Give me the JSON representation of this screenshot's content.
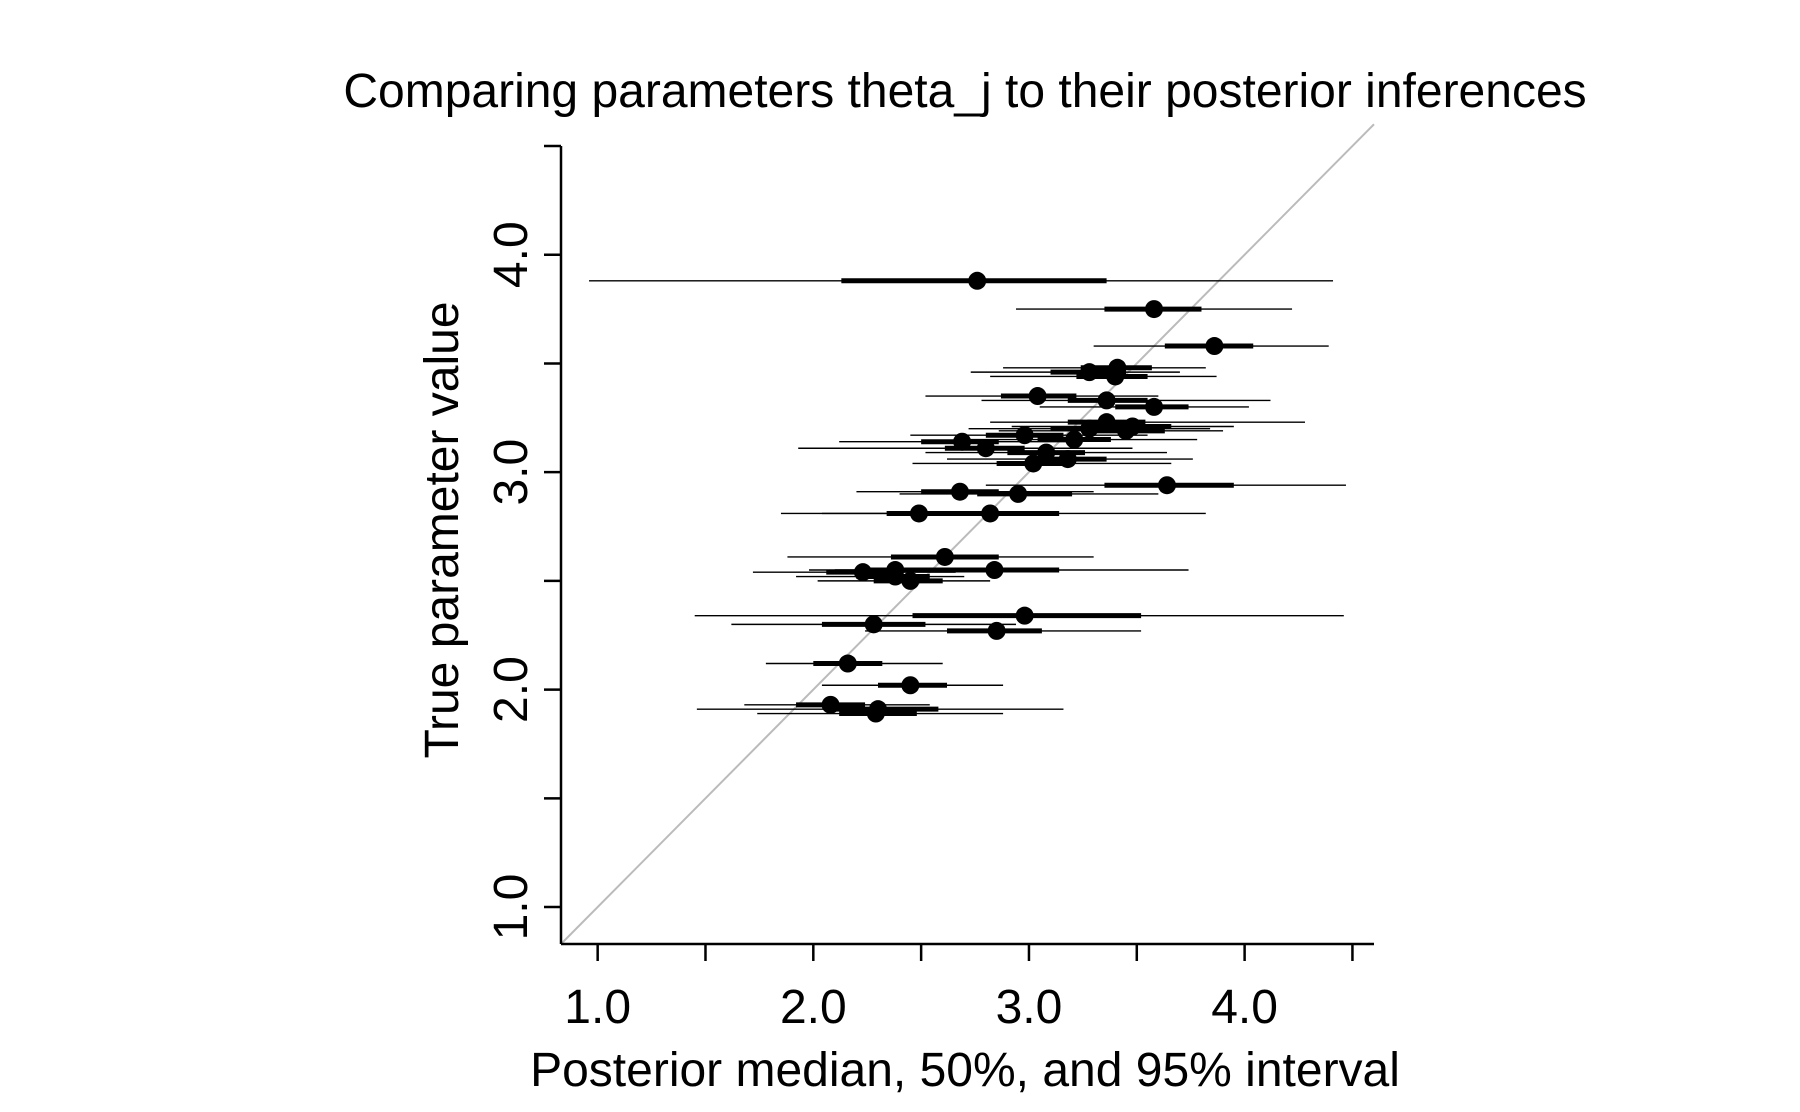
{
  "chart_data": {
    "type": "scatter",
    "title": "Comparing parameters theta_j to their posterior inferences",
    "xlabel": "Posterior median, 50%, and 95% interval",
    "ylabel": "True parameter value",
    "xlim": [
      0.83,
      4.6
    ],
    "ylim": [
      0.83,
      4.5
    ],
    "xticks": [
      1.0,
      1.5,
      2.0,
      2.5,
      3.0,
      3.5,
      4.0,
      4.5
    ],
    "yticks": [
      1.0,
      1.5,
      2.0,
      2.5,
      3.0,
      3.5,
      4.0,
      4.5
    ],
    "xtick_labels": [
      "1.0",
      "",
      "2.0",
      "",
      "3.0",
      "",
      "4.0",
      ""
    ],
    "ytick_labels": [
      "1.0",
      "",
      "2.0",
      "",
      "3.0",
      "",
      "4.0",
      ""
    ],
    "reference_line": {
      "from": [
        0.83,
        0.83
      ],
      "to": [
        4.6,
        4.6
      ],
      "color": "#bbbbbb"
    },
    "colors": {
      "points": "#000000",
      "reference_line": "#bbbbbb"
    },
    "grid": false,
    "points": [
      {
        "true_value": 3.88,
        "median": 2.76,
        "q50": [
          2.13,
          3.36
        ],
        "q95": [
          0.96,
          4.41
        ]
      },
      {
        "true_value": 3.75,
        "median": 3.58,
        "q50": [
          3.35,
          3.8
        ],
        "q95": [
          2.94,
          4.22
        ]
      },
      {
        "true_value": 3.58,
        "median": 3.86,
        "q50": [
          3.63,
          4.04
        ],
        "q95": [
          3.3,
          4.39
        ]
      },
      {
        "true_value": 3.48,
        "median": 3.41,
        "q50": [
          3.24,
          3.57
        ],
        "q95": [
          2.88,
          3.82
        ]
      },
      {
        "true_value": 3.46,
        "median": 3.28,
        "q50": [
          3.1,
          3.45
        ],
        "q95": [
          2.73,
          3.7
        ]
      },
      {
        "true_value": 3.44,
        "median": 3.4,
        "q50": [
          3.22,
          3.55
        ],
        "q95": [
          2.82,
          3.87
        ]
      },
      {
        "true_value": 3.35,
        "median": 3.04,
        "q50": [
          2.87,
          3.22
        ],
        "q95": [
          2.52,
          3.6
        ]
      },
      {
        "true_value": 3.33,
        "median": 3.36,
        "q50": [
          3.18,
          3.55
        ],
        "q95": [
          2.78,
          4.12
        ]
      },
      {
        "true_value": 3.3,
        "median": 3.58,
        "q50": [
          3.4,
          3.74
        ],
        "q95": [
          3.05,
          4.02
        ]
      },
      {
        "true_value": 3.23,
        "median": 3.36,
        "q50": [
          3.18,
          3.54
        ],
        "q95": [
          2.82,
          4.28
        ]
      },
      {
        "true_value": 3.21,
        "median": 3.48,
        "q50": [
          3.3,
          3.66
        ],
        "q95": [
          2.92,
          3.95
        ]
      },
      {
        "true_value": 3.2,
        "median": 3.28,
        "q50": [
          3.1,
          3.46
        ],
        "q95": [
          2.72,
          3.84
        ]
      },
      {
        "true_value": 3.19,
        "median": 3.45,
        "q50": [
          3.26,
          3.63
        ],
        "q95": [
          2.86,
          3.9
        ]
      },
      {
        "true_value": 3.17,
        "median": 2.98,
        "q50": [
          2.8,
          3.16
        ],
        "q95": [
          2.45,
          3.55
        ]
      },
      {
        "true_value": 3.15,
        "median": 3.21,
        "q50": [
          3.04,
          3.38
        ],
        "q95": [
          2.65,
          3.78
        ]
      },
      {
        "true_value": 3.14,
        "median": 2.69,
        "q50": [
          2.5,
          2.86
        ],
        "q95": [
          2.12,
          3.24
        ]
      },
      {
        "true_value": 3.11,
        "median": 2.8,
        "q50": [
          2.61,
          2.98
        ],
        "q95": [
          1.93,
          3.48
        ]
      },
      {
        "true_value": 3.09,
        "median": 3.08,
        "q50": [
          2.9,
          3.26
        ],
        "q95": [
          2.52,
          3.64
        ]
      },
      {
        "true_value": 3.06,
        "median": 3.18,
        "q50": [
          3.0,
          3.36
        ],
        "q95": [
          2.62,
          3.76
        ]
      },
      {
        "true_value": 3.04,
        "median": 3.02,
        "q50": [
          2.85,
          3.2
        ],
        "q95": [
          2.46,
          3.66
        ]
      },
      {
        "true_value": 2.94,
        "median": 3.64,
        "q50": [
          3.35,
          3.95
        ],
        "q95": [
          2.8,
          4.47
        ]
      },
      {
        "true_value": 2.91,
        "median": 2.68,
        "q50": [
          2.5,
          2.86
        ],
        "q95": [
          2.2,
          3.3
        ]
      },
      {
        "true_value": 2.9,
        "median": 2.95,
        "q50": [
          2.76,
          3.2
        ],
        "q95": [
          2.4,
          3.6
        ]
      },
      {
        "true_value": 2.81,
        "median": 2.49,
        "q50": [
          2.34,
          2.66
        ],
        "q95": [
          2.04,
          3.08
        ]
      },
      {
        "true_value": 2.81,
        "median": 2.82,
        "q50": [
          2.64,
          3.14
        ],
        "q95": [
          1.85,
          3.82
        ]
      },
      {
        "true_value": 2.61,
        "median": 2.61,
        "q50": [
          2.36,
          2.86
        ],
        "q95": [
          1.88,
          3.3
        ]
      },
      {
        "true_value": 2.55,
        "median": 2.84,
        "q50": [
          2.48,
          3.14
        ],
        "q95": [
          2.1,
          3.74
        ]
      },
      {
        "true_value": 2.55,
        "median": 2.38,
        "q50": [
          2.22,
          2.54
        ],
        "q95": [
          1.98,
          2.76
        ]
      },
      {
        "true_value": 2.54,
        "median": 2.23,
        "q50": [
          2.06,
          2.38
        ],
        "q95": [
          1.72,
          2.66
        ]
      },
      {
        "true_value": 2.52,
        "median": 2.38,
        "q50": [
          2.2,
          2.54
        ],
        "q95": [
          1.92,
          2.7
        ]
      },
      {
        "true_value": 2.5,
        "median": 2.45,
        "q50": [
          2.28,
          2.6
        ],
        "q95": [
          2.02,
          2.82
        ]
      },
      {
        "true_value": 2.34,
        "median": 2.98,
        "q50": [
          2.46,
          3.52
        ],
        "q95": [
          1.45,
          4.46
        ]
      },
      {
        "true_value": 2.3,
        "median": 2.28,
        "q50": [
          2.04,
          2.52
        ],
        "q95": [
          1.62,
          2.94
        ]
      },
      {
        "true_value": 2.27,
        "median": 2.85,
        "q50": [
          2.62,
          3.06
        ],
        "q95": [
          2.24,
          3.52
        ]
      },
      {
        "true_value": 2.12,
        "median": 2.16,
        "q50": [
          2.0,
          2.32
        ],
        "q95": [
          1.78,
          2.6
        ]
      },
      {
        "true_value": 2.02,
        "median": 2.45,
        "q50": [
          2.3,
          2.62
        ],
        "q95": [
          2.04,
          2.88
        ]
      },
      {
        "true_value": 1.93,
        "median": 2.08,
        "q50": [
          1.92,
          2.24
        ],
        "q95": [
          1.68,
          2.54
        ]
      },
      {
        "true_value": 1.91,
        "median": 2.3,
        "q50": [
          2.06,
          2.58
        ],
        "q95": [
          1.46,
          3.16
        ]
      },
      {
        "true_value": 1.89,
        "median": 2.29,
        "q50": [
          2.12,
          2.48
        ],
        "q95": [
          1.74,
          2.88
        ]
      }
    ]
  }
}
